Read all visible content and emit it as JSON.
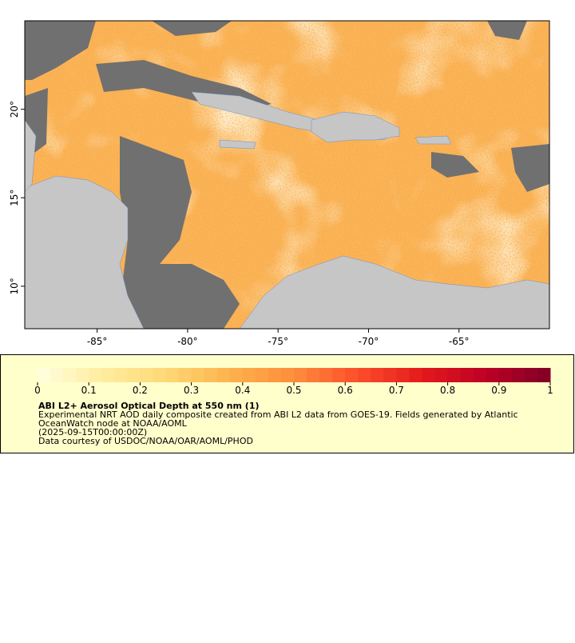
{
  "map": {
    "xlim": [
      -89,
      -60
    ],
    "ylim": [
      7.6,
      25
    ],
    "xticks": [
      {
        "value": -85,
        "label": "-85°"
      },
      {
        "value": -80,
        "label": "-80°"
      },
      {
        "value": -75,
        "label": "-75°"
      },
      {
        "value": -70,
        "label": "-70°"
      },
      {
        "value": -65,
        "label": "-65°"
      }
    ],
    "yticks": [
      {
        "value": 10,
        "label": "10°"
      },
      {
        "value": 15,
        "label": "15°"
      },
      {
        "value": 20,
        "label": "20°"
      }
    ]
  },
  "legend": {
    "colorbar": {
      "range": [
        0,
        1
      ],
      "ticks": [
        0,
        0.1,
        0.2,
        0.3,
        0.4,
        0.5,
        0.6,
        0.7,
        0.8,
        0.9,
        1
      ],
      "colors": [
        "#ffffe0",
        "#ffeda0",
        "#fed976",
        "#feb24c",
        "#fd8d3c",
        "#fc4e2a",
        "#e31a1c",
        "#bd0026",
        "#800026"
      ]
    },
    "title": "ABI L2+ Aerosol Optical Depth at 550 nm (1)",
    "description": [
      "Experimental NRT AOD daily composite created from ABI L2 data from GOES-19. Fields generated by Atlantic",
      "OceanWatch node at NOAA/AOML",
      "(2025-09-15T00:00:00Z)",
      "Data courtesy of USDOC/NOAA/OAR/AOML/PHOD"
    ]
  }
}
